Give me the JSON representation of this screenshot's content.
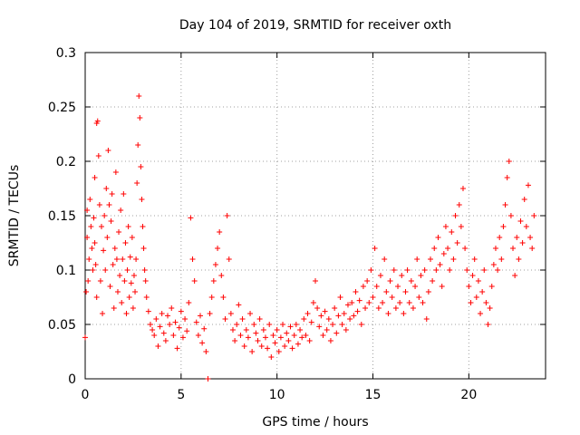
{
  "chart_data": {
    "type": "scatter",
    "title": "Day 104 of 2019, SRMTID for receiver oxth",
    "xlabel": "GPS time / hours",
    "ylabel": "SRMTID / TECUs",
    "xlim": [
      0,
      24
    ],
    "ylim": [
      0,
      0.3
    ],
    "x_ticks": [
      "0",
      "5",
      "10",
      "15",
      "20"
    ],
    "y_ticks": [
      "0",
      "0.05",
      "0.1",
      "0.15",
      "0.2",
      "0.25",
      "0.3"
    ],
    "grid": true,
    "marker": "plus",
    "marker_color": "#ff0000",
    "points": [
      [
        0.0,
        0.038
      ],
      [
        0.05,
        0.08
      ],
      [
        0.1,
        0.13
      ],
      [
        0.1,
        0.155
      ],
      [
        0.15,
        0.09
      ],
      [
        0.2,
        0.11
      ],
      [
        0.25,
        0.165
      ],
      [
        0.3,
        0.14
      ],
      [
        0.35,
        0.12
      ],
      [
        0.4,
        0.1
      ],
      [
        0.45,
        0.148
      ],
      [
        0.5,
        0.125
      ],
      [
        0.5,
        0.185
      ],
      [
        0.55,
        0.105
      ],
      [
        0.6,
        0.075
      ],
      [
        0.6,
        0.235
      ],
      [
        0.65,
        0.237
      ],
      [
        0.7,
        0.205
      ],
      [
        0.75,
        0.16
      ],
      [
        0.8,
        0.09
      ],
      [
        0.85,
        0.14
      ],
      [
        0.9,
        0.06
      ],
      [
        0.95,
        0.118
      ],
      [
        1.0,
        0.15
      ],
      [
        1.05,
        0.1
      ],
      [
        1.1,
        0.175
      ],
      [
        1.15,
        0.13
      ],
      [
        1.2,
        0.21
      ],
      [
        1.25,
        0.16
      ],
      [
        1.3,
        0.085
      ],
      [
        1.35,
        0.145
      ],
      [
        1.4,
        0.17
      ],
      [
        1.45,
        0.105
      ],
      [
        1.5,
        0.065
      ],
      [
        1.55,
        0.12
      ],
      [
        1.6,
        0.19
      ],
      [
        1.65,
        0.11
      ],
      [
        1.7,
        0.08
      ],
      [
        1.75,
        0.135
      ],
      [
        1.8,
        0.095
      ],
      [
        1.85,
        0.155
      ],
      [
        1.9,
        0.07
      ],
      [
        1.95,
        0.11
      ],
      [
        2.0,
        0.17
      ],
      [
        2.05,
        0.09
      ],
      [
        2.1,
        0.125
      ],
      [
        2.15,
        0.06
      ],
      [
        2.2,
        0.1
      ],
      [
        2.25,
        0.14
      ],
      [
        2.3,
        0.075
      ],
      [
        2.35,
        0.112
      ],
      [
        2.4,
        0.088
      ],
      [
        2.45,
        0.13
      ],
      [
        2.5,
        0.065
      ],
      [
        2.55,
        0.095
      ],
      [
        2.6,
        0.08
      ],
      [
        2.65,
        0.11
      ],
      [
        2.7,
        0.18
      ],
      [
        2.75,
        0.215
      ],
      [
        2.8,
        0.26
      ],
      [
        2.85,
        0.24
      ],
      [
        2.9,
        0.195
      ],
      [
        2.95,
        0.165
      ],
      [
        3.0,
        0.14
      ],
      [
        3.05,
        0.12
      ],
      [
        3.1,
        0.1
      ],
      [
        3.15,
        0.09
      ],
      [
        3.2,
        0.075
      ],
      [
        3.3,
        0.062
      ],
      [
        3.4,
        0.05
      ],
      [
        3.5,
        0.045
      ],
      [
        3.6,
        0.04
      ],
      [
        3.7,
        0.055
      ],
      [
        3.8,
        0.03
      ],
      [
        3.9,
        0.048
      ],
      [
        4.0,
        0.06
      ],
      [
        4.1,
        0.042
      ],
      [
        4.2,
        0.035
      ],
      [
        4.3,
        0.058
      ],
      [
        4.4,
        0.05
      ],
      [
        4.5,
        0.065
      ],
      [
        4.6,
        0.04
      ],
      [
        4.7,
        0.052
      ],
      [
        4.8,
        0.028
      ],
      [
        4.9,
        0.047
      ],
      [
        5.0,
        0.062
      ],
      [
        5.1,
        0.038
      ],
      [
        5.2,
        0.055
      ],
      [
        5.3,
        0.044
      ],
      [
        5.4,
        0.07
      ],
      [
        5.5,
        0.148
      ],
      [
        5.6,
        0.11
      ],
      [
        5.7,
        0.09
      ],
      [
        5.8,
        0.052
      ],
      [
        5.9,
        0.04
      ],
      [
        6.0,
        0.058
      ],
      [
        6.1,
        0.033
      ],
      [
        6.2,
        0.046
      ],
      [
        6.3,
        0.025
      ],
      [
        6.4,
        0.0
      ],
      [
        6.5,
        0.06
      ],
      [
        6.6,
        0.075
      ],
      [
        6.7,
        0.09
      ],
      [
        6.8,
        0.105
      ],
      [
        6.9,
        0.12
      ],
      [
        7.0,
        0.135
      ],
      [
        7.1,
        0.095
      ],
      [
        7.2,
        0.075
      ],
      [
        7.3,
        0.055
      ],
      [
        7.4,
        0.15
      ],
      [
        7.5,
        0.11
      ],
      [
        7.6,
        0.06
      ],
      [
        7.7,
        0.045
      ],
      [
        7.8,
        0.035
      ],
      [
        7.9,
        0.05
      ],
      [
        8.0,
        0.068
      ],
      [
        8.1,
        0.04
      ],
      [
        8.2,
        0.055
      ],
      [
        8.3,
        0.03
      ],
      [
        8.4,
        0.045
      ],
      [
        8.5,
        0.038
      ],
      [
        8.6,
        0.06
      ],
      [
        8.7,
        0.025
      ],
      [
        8.8,
        0.05
      ],
      [
        8.9,
        0.042
      ],
      [
        9.0,
        0.035
      ],
      [
        9.1,
        0.055
      ],
      [
        9.2,
        0.03
      ],
      [
        9.3,
        0.045
      ],
      [
        9.4,
        0.038
      ],
      [
        9.5,
        0.028
      ],
      [
        9.6,
        0.05
      ],
      [
        9.7,
        0.02
      ],
      [
        9.8,
        0.04
      ],
      [
        9.9,
        0.033
      ],
      [
        10.0,
        0.045
      ],
      [
        10.1,
        0.025
      ],
      [
        10.2,
        0.038
      ],
      [
        10.3,
        0.05
      ],
      [
        10.4,
        0.03
      ],
      [
        10.5,
        0.042
      ],
      [
        10.6,
        0.035
      ],
      [
        10.7,
        0.048
      ],
      [
        10.8,
        0.028
      ],
      [
        10.9,
        0.04
      ],
      [
        11.0,
        0.05
      ],
      [
        11.1,
        0.032
      ],
      [
        11.2,
        0.045
      ],
      [
        11.3,
        0.038
      ],
      [
        11.4,
        0.055
      ],
      [
        11.5,
        0.04
      ],
      [
        11.6,
        0.06
      ],
      [
        11.7,
        0.035
      ],
      [
        11.8,
        0.052
      ],
      [
        11.9,
        0.07
      ],
      [
        12.0,
        0.09
      ],
      [
        12.1,
        0.065
      ],
      [
        12.2,
        0.048
      ],
      [
        12.3,
        0.058
      ],
      [
        12.4,
        0.04
      ],
      [
        12.5,
        0.062
      ],
      [
        12.6,
        0.045
      ],
      [
        12.7,
        0.055
      ],
      [
        12.8,
        0.035
      ],
      [
        12.9,
        0.05
      ],
      [
        13.0,
        0.065
      ],
      [
        13.1,
        0.042
      ],
      [
        13.2,
        0.058
      ],
      [
        13.3,
        0.075
      ],
      [
        13.4,
        0.05
      ],
      [
        13.5,
        0.06
      ],
      [
        13.6,
        0.045
      ],
      [
        13.7,
        0.068
      ],
      [
        13.8,
        0.055
      ],
      [
        13.9,
        0.07
      ],
      [
        14.0,
        0.058
      ],
      [
        14.1,
        0.08
      ],
      [
        14.2,
        0.062
      ],
      [
        14.3,
        0.072
      ],
      [
        14.4,
        0.05
      ],
      [
        14.5,
        0.085
      ],
      [
        14.6,
        0.065
      ],
      [
        14.7,
        0.09
      ],
      [
        14.8,
        0.07
      ],
      [
        14.9,
        0.1
      ],
      [
        15.0,
        0.075
      ],
      [
        15.1,
        0.12
      ],
      [
        15.2,
        0.085
      ],
      [
        15.3,
        0.065
      ],
      [
        15.4,
        0.095
      ],
      [
        15.5,
        0.07
      ],
      [
        15.6,
        0.11
      ],
      [
        15.7,
        0.08
      ],
      [
        15.8,
        0.06
      ],
      [
        15.9,
        0.09
      ],
      [
        16.0,
        0.075
      ],
      [
        16.1,
        0.1
      ],
      [
        16.2,
        0.065
      ],
      [
        16.3,
        0.085
      ],
      [
        16.4,
        0.07
      ],
      [
        16.5,
        0.095
      ],
      [
        16.6,
        0.06
      ],
      [
        16.7,
        0.08
      ],
      [
        16.8,
        0.1
      ],
      [
        16.9,
        0.07
      ],
      [
        17.0,
        0.09
      ],
      [
        17.1,
        0.065
      ],
      [
        17.2,
        0.085
      ],
      [
        17.3,
        0.11
      ],
      [
        17.4,
        0.075
      ],
      [
        17.5,
        0.095
      ],
      [
        17.6,
        0.07
      ],
      [
        17.7,
        0.1
      ],
      [
        17.8,
        0.055
      ],
      [
        17.9,
        0.08
      ],
      [
        18.0,
        0.11
      ],
      [
        18.1,
        0.09
      ],
      [
        18.2,
        0.12
      ],
      [
        18.3,
        0.1
      ],
      [
        18.4,
        0.13
      ],
      [
        18.5,
        0.105
      ],
      [
        18.6,
        0.085
      ],
      [
        18.7,
        0.115
      ],
      [
        18.8,
        0.14
      ],
      [
        18.9,
        0.12
      ],
      [
        19.0,
        0.1
      ],
      [
        19.1,
        0.135
      ],
      [
        19.2,
        0.11
      ],
      [
        19.3,
        0.15
      ],
      [
        19.4,
        0.125
      ],
      [
        19.5,
        0.16
      ],
      [
        19.6,
        0.14
      ],
      [
        19.7,
        0.175
      ],
      [
        19.8,
        0.12
      ],
      [
        19.9,
        0.1
      ],
      [
        20.0,
        0.085
      ],
      [
        20.1,
        0.07
      ],
      [
        20.2,
        0.095
      ],
      [
        20.3,
        0.11
      ],
      [
        20.4,
        0.075
      ],
      [
        20.5,
        0.09
      ],
      [
        20.6,
        0.06
      ],
      [
        20.7,
        0.08
      ],
      [
        20.8,
        0.1
      ],
      [
        20.9,
        0.07
      ],
      [
        21.0,
        0.05
      ],
      [
        21.1,
        0.065
      ],
      [
        21.2,
        0.085
      ],
      [
        21.3,
        0.105
      ],
      [
        21.4,
        0.12
      ],
      [
        21.5,
        0.1
      ],
      [
        21.6,
        0.13
      ],
      [
        21.7,
        0.11
      ],
      [
        21.8,
        0.14
      ],
      [
        21.9,
        0.16
      ],
      [
        22.0,
        0.185
      ],
      [
        22.1,
        0.2
      ],
      [
        22.2,
        0.15
      ],
      [
        22.3,
        0.12
      ],
      [
        22.4,
        0.095
      ],
      [
        22.5,
        0.13
      ],
      [
        22.6,
        0.11
      ],
      [
        22.7,
        0.145
      ],
      [
        22.8,
        0.125
      ],
      [
        22.9,
        0.165
      ],
      [
        23.0,
        0.14
      ],
      [
        23.1,
        0.178
      ],
      [
        23.2,
        0.13
      ],
      [
        23.3,
        0.12
      ],
      [
        23.4,
        0.15
      ]
    ]
  }
}
